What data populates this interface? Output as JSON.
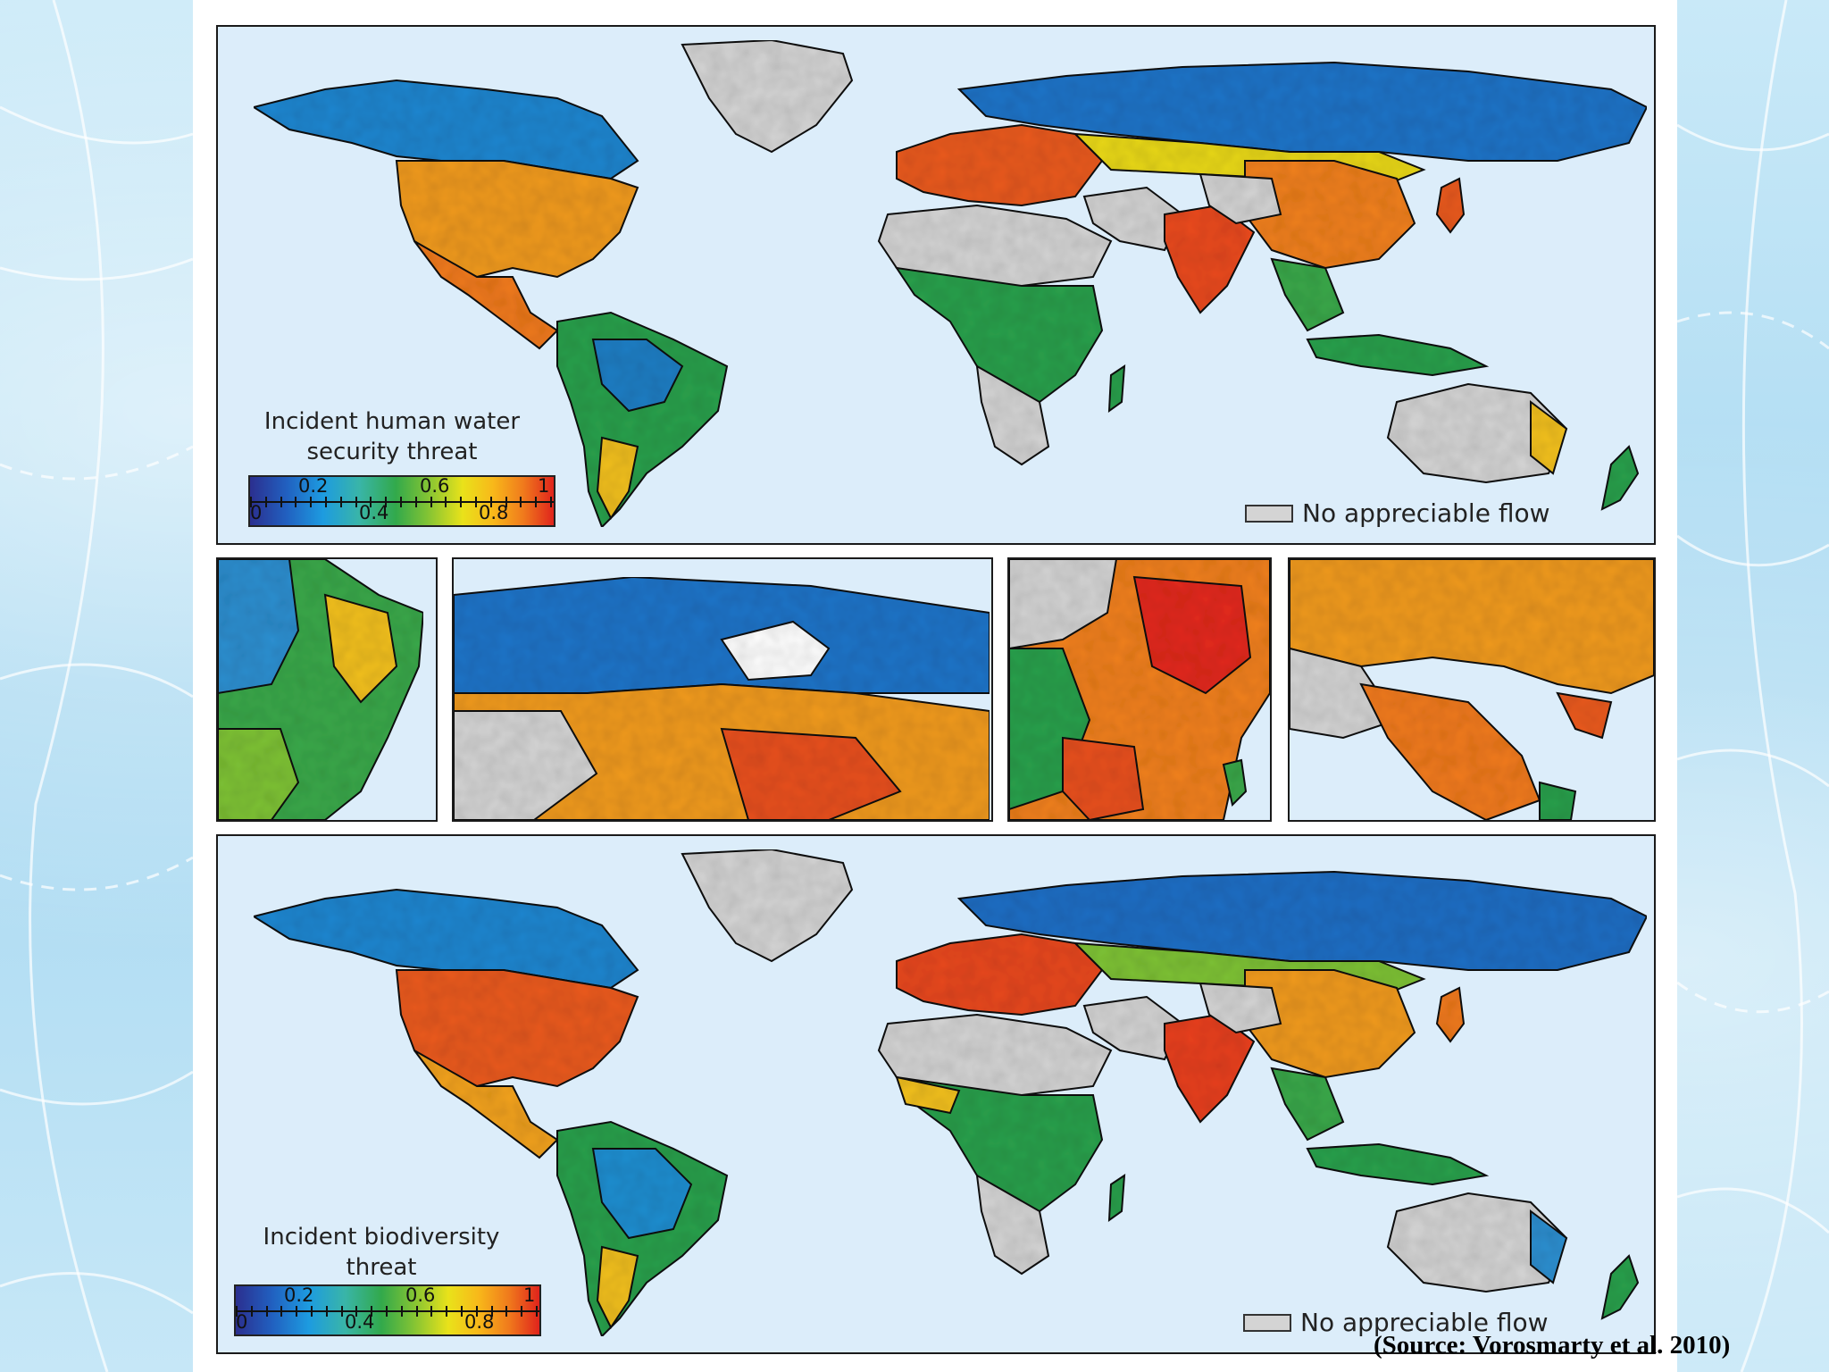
{
  "maps": {
    "top": {
      "legend_title_line1": "Incident human water",
      "legend_title_line2": "security threat",
      "scale_top_labels": [
        "0.2",
        "0.6",
        "1"
      ],
      "scale_bottom_labels": [
        "0",
        "0.4",
        "0.8"
      ],
      "no_flow_label": "No appreciable flow"
    },
    "bottom": {
      "legend_title_line1": "Incident biodiversity",
      "legend_title_line2": "threat",
      "scale_top_labels": [
        "0.2",
        "0.6",
        "1"
      ],
      "scale_bottom_labels": [
        "0",
        "0.4",
        "0.8"
      ],
      "no_flow_label": "No appreciable flow"
    },
    "insets": [
      "eastern-south-america",
      "north-america",
      "east-asia",
      "us-mexico"
    ]
  },
  "colors": {
    "low": "#2b2f8f",
    "mid": "#32a94b",
    "high": "#e0241c",
    "no_flow": "#d4d4d4",
    "ocean": "#dcedfa"
  },
  "source": "(Source: Vorosmarty et al. 2010)"
}
